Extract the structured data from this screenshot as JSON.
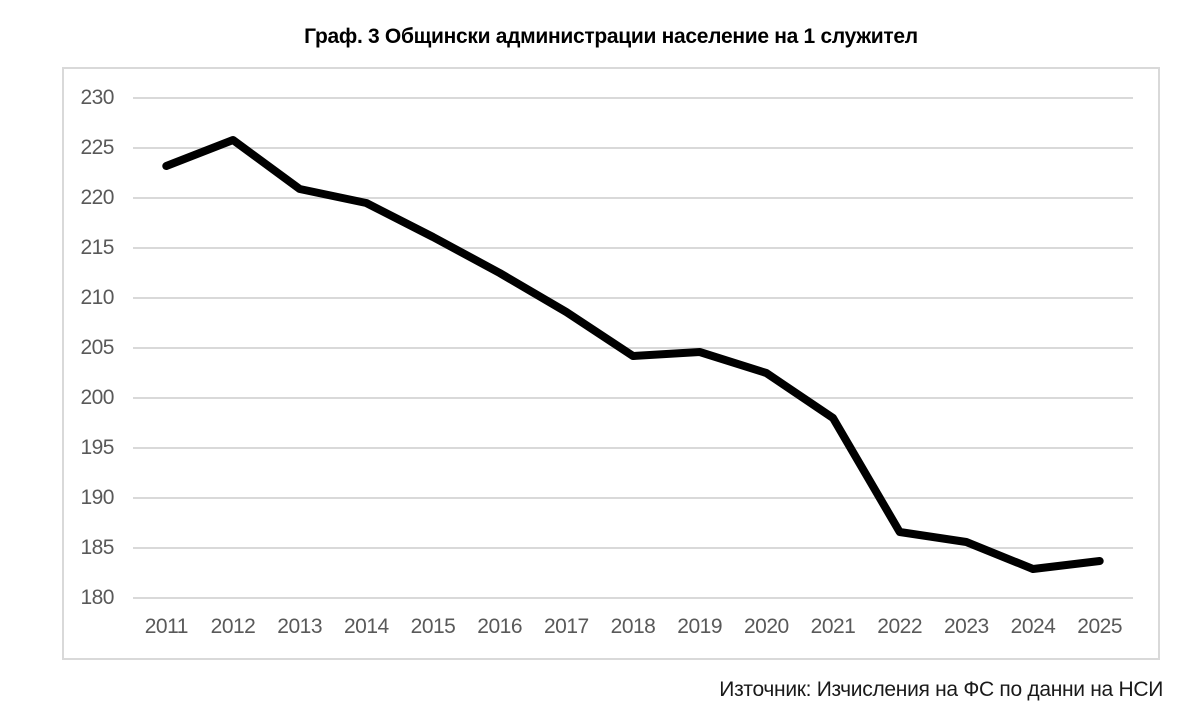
{
  "title": "Граф. 3 Общински администрации население на 1 служител",
  "source_note": "Източник: Изчисления на ФС по данни на НСИ",
  "colors": {
    "line": "#000000",
    "gridline": "#d9d9d9",
    "frame_border": "#d9d9d9",
    "axis_label": "#595959",
    "title_text": "#000000"
  },
  "chart_data": {
    "type": "line",
    "title": "Граф. 3 Общински администрации население на 1 служител",
    "categories": [
      "2011",
      "2012",
      "2013",
      "2014",
      "2015",
      "2016",
      "2017",
      "2018",
      "2019",
      "2020",
      "2021",
      "2022",
      "2023",
      "2024",
      "2025"
    ],
    "series": [
      {
        "name": "Население на 1 служител",
        "values": [
          223.2,
          225.8,
          220.9,
          219.5,
          216.1,
          212.5,
          208.6,
          204.2,
          204.6,
          202.5,
          198.0,
          186.6,
          185.6,
          182.9,
          183.7
        ]
      }
    ],
    "xlabel": "",
    "ylabel": "",
    "ylim": [
      180,
      230
    ],
    "ytick_step": 5,
    "grid": "horizontal",
    "legend": "none",
    "markers": "none",
    "line_width": 8,
    "source": "Източник: Изчисления на ФС по данни на НСИ"
  }
}
